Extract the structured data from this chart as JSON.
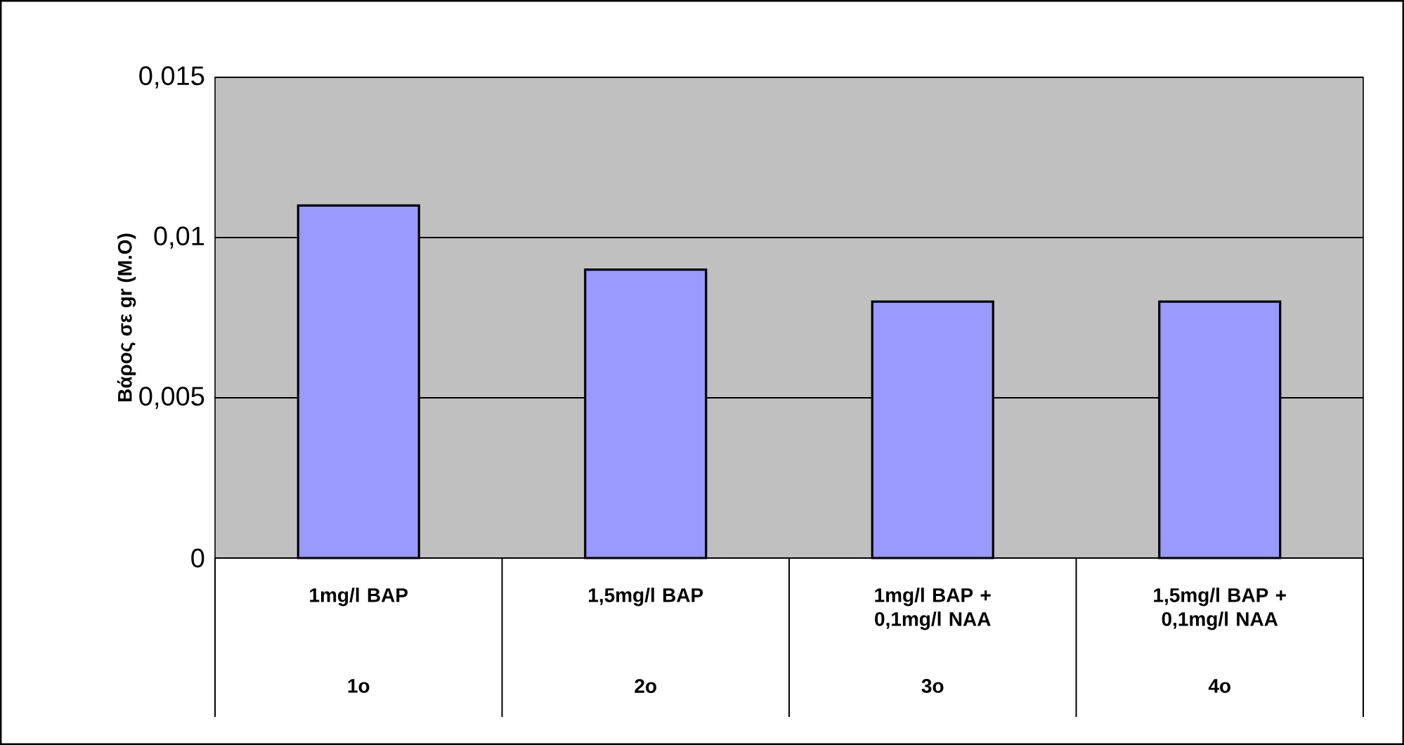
{
  "chart_data": {
    "type": "bar",
    "ylabel": "Βάρος σε gr (M.O)",
    "categories": [
      "1mg/l BAP",
      "1,5mg/l BAP",
      "1mg/l BAP + 0,1mg/l NAA",
      "1,5mg/l BAP + 0,1mg/l NAA"
    ],
    "values": [
      0.011,
      0.009,
      0.008,
      0.008
    ],
    "color": "#9999ff",
    "ylim": [
      0,
      0.015
    ],
    "yticks": [
      0,
      {
        "value": 0.005,
        "label": "0,005"
      },
      {
        "value": 0.01,
        "label": "0,01"
      },
      {
        "value": 0.015,
        "label": "0,015"
      }
    ],
    "grid": "y",
    "annotations": [
      "1o",
      "2o",
      "3o",
      "4o"
    ]
  }
}
